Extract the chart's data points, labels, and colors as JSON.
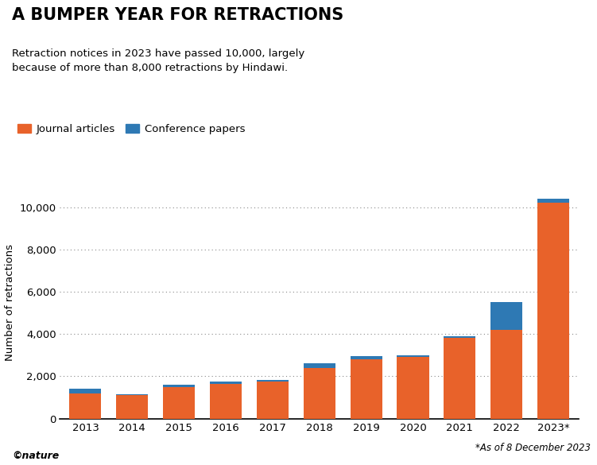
{
  "years": [
    "2013",
    "2014",
    "2015",
    "2016",
    "2017",
    "2018",
    "2019",
    "2020",
    "2021",
    "2022",
    "2023*"
  ],
  "journal_articles": [
    1200,
    1100,
    1500,
    1650,
    1750,
    2400,
    2800,
    2900,
    3800,
    4200,
    10200
  ],
  "conference_papers": [
    200,
    30,
    80,
    90,
    80,
    200,
    150,
    100,
    100,
    1300,
    200
  ],
  "journal_color": "#E8622A",
  "conference_color": "#2E79B4",
  "title": "A BUMPER YEAR FOR RETRACTIONS",
  "subtitle": "Retraction notices in 2023 have passed 10,000, largely\nbecause of more than 8,000 retractions by Hindawi.",
  "ylabel": "Number of retractions",
  "legend_journal": "Journal articles",
  "legend_conf": "Conference papers",
  "footnote": "*As of 8 December 2023",
  "nature_label": "©nature",
  "ylim": [
    0,
    11000
  ],
  "yticks": [
    0,
    2000,
    4000,
    6000,
    8000,
    10000
  ],
  "background_color": "#ffffff",
  "title_fontsize": 15,
  "subtitle_fontsize": 9.5,
  "ylabel_fontsize": 9.5,
  "tick_fontsize": 9.5,
  "legend_fontsize": 9.5
}
